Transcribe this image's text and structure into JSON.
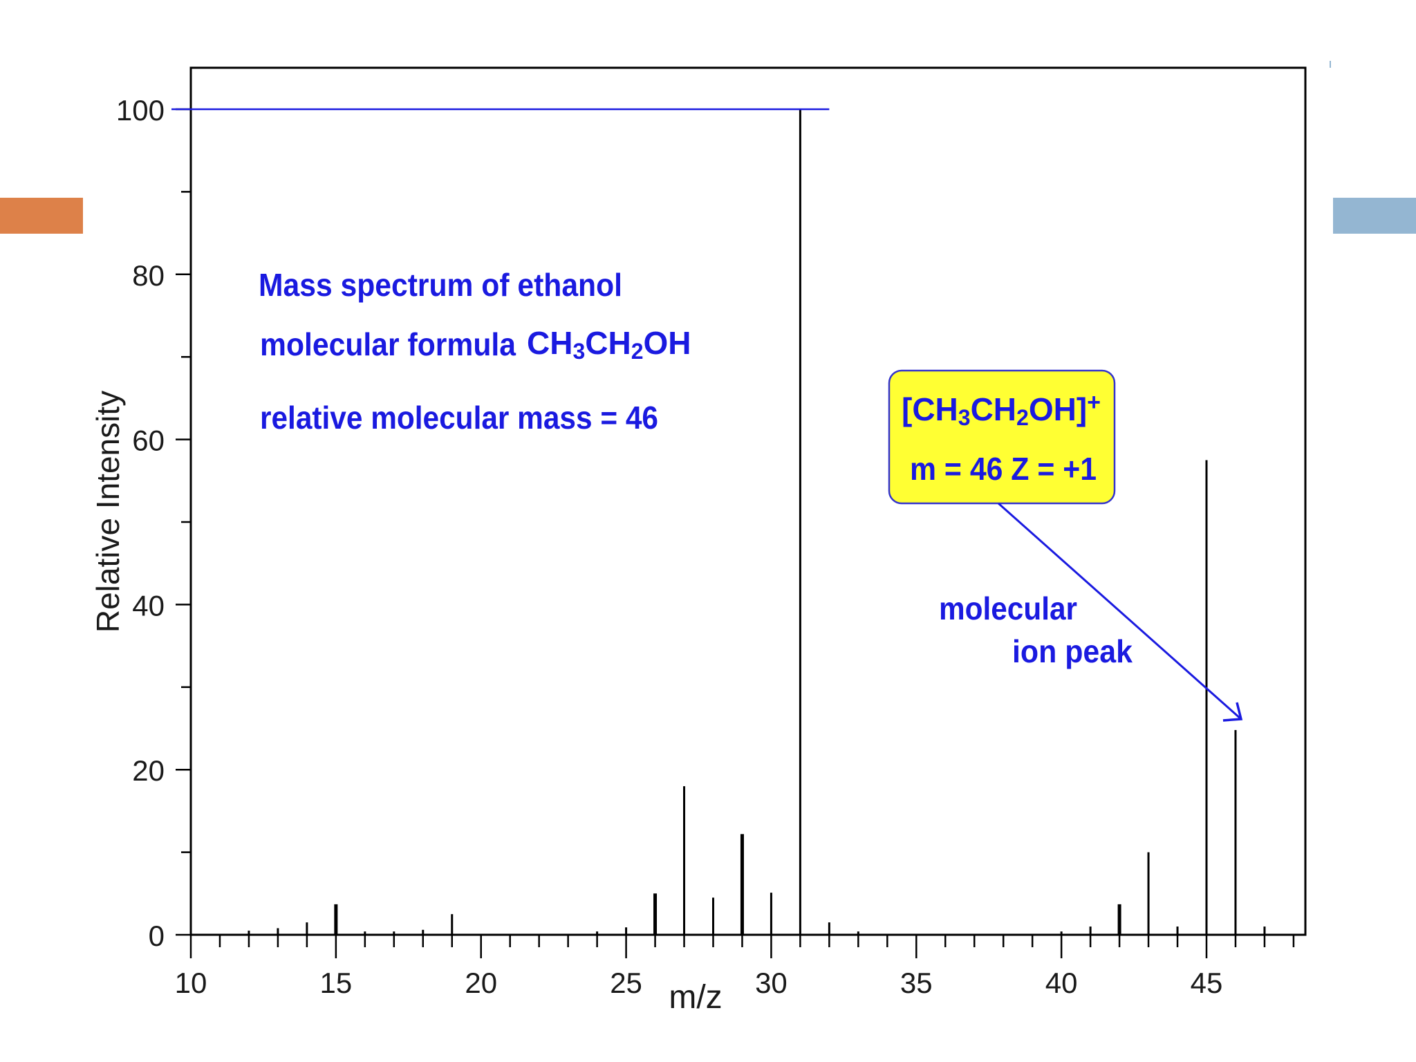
{
  "chart_data": {
    "type": "bar",
    "xlabel": "m/z",
    "ylabel": "Relative Intensity",
    "xlim": [
      10,
      48.5
    ],
    "ylim": [
      0,
      105
    ],
    "x_ticks": [
      10,
      15,
      20,
      25,
      30,
      35,
      40,
      45
    ],
    "x_tick_labels": [
      "10",
      "15",
      "20",
      "25",
      "30",
      "35",
      "40",
      "45"
    ],
    "y_ticks": [
      0,
      20,
      40,
      60,
      80,
      100
    ],
    "y_tick_labels": [
      "0",
      "20",
      "40",
      "60",
      "80",
      "100"
    ],
    "grid": false,
    "reference_line_value": 100,
    "peaks": [
      {
        "x": 12,
        "y": 0.5
      },
      {
        "x": 13,
        "y": 0.8
      },
      {
        "x": 14,
        "y": 1.5
      },
      {
        "x": 15,
        "y": 3.7
      },
      {
        "x": 16,
        "y": 0.4
      },
      {
        "x": 17,
        "y": 0.4
      },
      {
        "x": 18,
        "y": 0.6
      },
      {
        "x": 19,
        "y": 2.5
      },
      {
        "x": 24,
        "y": 0.4
      },
      {
        "x": 25,
        "y": 0.9
      },
      {
        "x": 26,
        "y": 5.0
      },
      {
        "x": 27,
        "y": 18.0
      },
      {
        "x": 28,
        "y": 4.5
      },
      {
        "x": 29,
        "y": 12.2
      },
      {
        "x": 30,
        "y": 5.1
      },
      {
        "x": 31,
        "y": 100
      },
      {
        "x": 32,
        "y": 1.5
      },
      {
        "x": 33,
        "y": 0.4
      },
      {
        "x": 40,
        "y": 0.4
      },
      {
        "x": 41,
        "y": 1.0
      },
      {
        "x": 42,
        "y": 3.7
      },
      {
        "x": 43,
        "y": 10.0
      },
      {
        "x": 44,
        "y": 1.0
      },
      {
        "x": 45,
        "y": 57.5
      },
      {
        "x": 46,
        "y": 24.8
      },
      {
        "x": 47,
        "y": 1.0
      }
    ],
    "annotations": {
      "title_line1": "Mass spectrum of ethanol",
      "title_line2_prefix": "molecular formula",
      "formula": "CH3CH2OH",
      "title_line3": "relative molecular mass = 46",
      "ion_box_line1": "[CH3CH2OH]+",
      "ion_box_line2": "m = 46  Z = +1",
      "ion_label_line1": "molecular",
      "ion_label_line2": "ion peak",
      "arrow_target_x": 46
    }
  },
  "colors": {
    "annotation_text": "#1a1ae0",
    "reference_line": "#1a1ae0",
    "ion_box_fill": "#ffff33",
    "ion_box_border": "#3333cc",
    "bars": "#000000",
    "axis": "#000000",
    "slide_accent_left": "#dd8149",
    "slide_accent_right": "#94b6d2"
  }
}
